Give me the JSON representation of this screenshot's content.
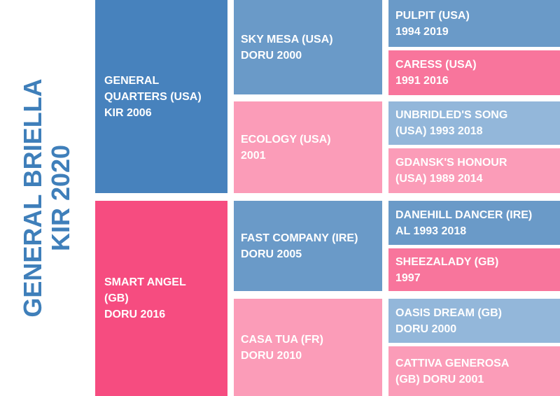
{
  "subject": {
    "name": "GENERAL BRIELLA",
    "detail": "KIR 2020"
  },
  "sire": {
    "line1": "GENERAL",
    "line2": "QUARTERS (USA)",
    "line3": "KIR 2006",
    "color": "#4782bd"
  },
  "dam": {
    "line1": "SMART ANGEL",
    "line2": "(GB)",
    "line3": "DORU 2016",
    "color": "#f64c80"
  },
  "grandparents": [
    {
      "line1": "SKY MESA (USA)",
      "line2": "DORU 2000",
      "color": "#6a9ac8"
    },
    {
      "line1": "ECOLOGY (USA)",
      "line2": "2001",
      "color": "#fb9cb8"
    },
    {
      "line1": "FAST COMPANY (IRE)",
      "line2": "DORU 2005",
      "color": "#6a9ac8"
    },
    {
      "line1": "CASA TUA (FR)",
      "line2": "DORU 2010",
      "color": "#fb9cb8"
    }
  ],
  "great_grandparents": [
    {
      "line1": "PULPIT (USA)",
      "line2": "1994 2019",
      "color": "#6a9ac8"
    },
    {
      "line1": "CARESS (USA)",
      "line2": "1991 2016",
      "color": "#f8759c"
    },
    {
      "line1": "UNBRIDLED'S SONG",
      "line2": "(USA) 1993 2018",
      "color": "#93b7da"
    },
    {
      "line1": "GDANSK'S HONOUR",
      "line2": "(USA) 1989 2014",
      "color": "#fb9cb8"
    },
    {
      "line1": "DANEHILL DANCER (IRE)",
      "line2": "AL 1993 2018",
      "color": "#6a9ac8"
    },
    {
      "line1": "SHEEZALADY (GB)",
      "line2": "1997",
      "color": "#f8759c"
    },
    {
      "line1": "OASIS DREAM (GB)",
      "line2": "DORU 2000",
      "color": "#93b7da"
    },
    {
      "line1": "CATTIVA GENEROSA",
      "line2": "(GB) DORU 2001",
      "color": "#fb9cb8"
    }
  ]
}
